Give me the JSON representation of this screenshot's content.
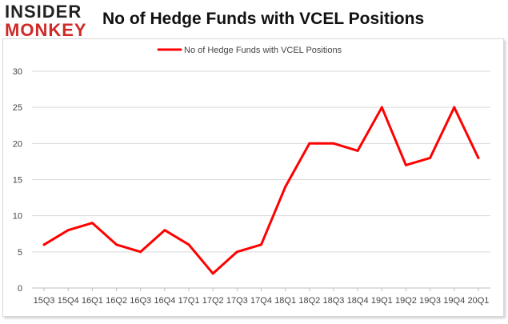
{
  "header": {
    "logo_top": "INSIDER",
    "logo_bottom": "MONKEY",
    "title": "No of Hedge Funds with VCEL Positions"
  },
  "colors": {
    "series": "#ff0000",
    "logo_red": "#cf2a27",
    "grid": "#d9d9d9"
  },
  "chart_data": {
    "type": "line",
    "title": "No of Hedge Funds with VCEL Positions",
    "xlabel": "",
    "ylabel": "",
    "ylim": [
      0,
      30
    ],
    "yticks": [
      0,
      5,
      10,
      15,
      20,
      25,
      30
    ],
    "grid": true,
    "legend_position": "top-center",
    "categories": [
      "15Q3",
      "15Q4",
      "16Q1",
      "16Q2",
      "16Q3",
      "16Q4",
      "17Q1",
      "17Q2",
      "17Q3",
      "17Q4",
      "18Q1",
      "18Q2",
      "18Q3",
      "18Q4",
      "19Q1",
      "19Q2",
      "19Q3",
      "19Q4",
      "20Q1"
    ],
    "series": [
      {
        "name": "No of Hedge Funds with VCEL Positions",
        "values": [
          6,
          8,
          9,
          6,
          5,
          8,
          6,
          2,
          5,
          6,
          14,
          20,
          20,
          19,
          25,
          17,
          18,
          25,
          18
        ]
      }
    ]
  }
}
